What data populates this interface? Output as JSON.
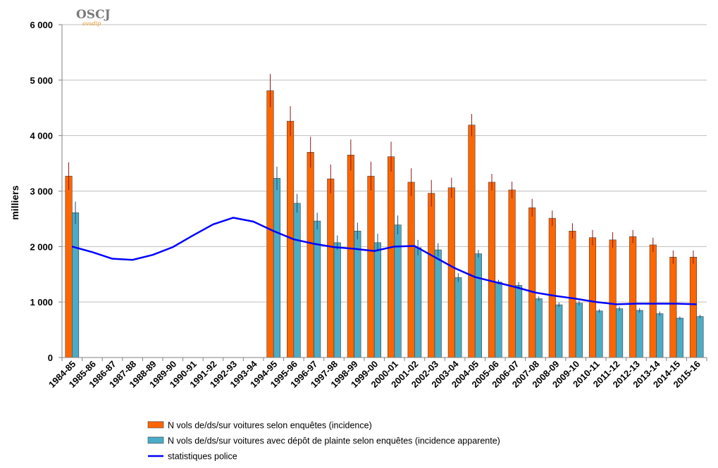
{
  "logo": {
    "text": "OSCJ",
    "sub": "ovsdip"
  },
  "chart_data": {
    "type": "bar",
    "ylabel": "milliers",
    "ylim": [
      0,
      6000
    ],
    "yticks": [
      0,
      1000,
      2000,
      3000,
      4000,
      5000,
      6000
    ],
    "ytick_labels": [
      "0",
      "1 000",
      "2 000",
      "3 000",
      "4 000",
      "5 000",
      "6 000"
    ],
    "grid": true,
    "legend_position": "bottom",
    "categories": [
      "1984-85",
      "1985-86",
      "1986-87",
      "1987-88",
      "1988-89",
      "1989-90",
      "1990-91",
      "1991-92",
      "1992-93",
      "1993-94",
      "1994-95",
      "1995-96",
      "1996-97",
      "1997-98",
      "1998-99",
      "1999-00",
      "2000-01",
      "2001-02",
      "2002-03",
      "2003-04",
      "2004-05",
      "2005-06",
      "2006-07",
      "2007-08",
      "2008-09",
      "2009-10",
      "2010-11",
      "2011-12",
      "2012-13",
      "2013-14",
      "2014-15",
      "2015-16"
    ],
    "series": [
      {
        "name": "N vols de/ds/sur voitures selon enquêtes (incidence)",
        "type": "bar",
        "color": "#ff6600",
        "values": [
          3270,
          null,
          null,
          null,
          null,
          null,
          null,
          null,
          null,
          null,
          4810,
          4260,
          3700,
          3220,
          3650,
          3270,
          3620,
          3160,
          2960,
          3060,
          4190,
          3160,
          3020,
          2700,
          2510,
          2280,
          2160,
          2120,
          2180,
          2030,
          1810,
          1810
        ],
        "error_upper": [
          3520,
          null,
          null,
          null,
          null,
          null,
          null,
          null,
          null,
          null,
          5110,
          4530,
          3980,
          3480,
          3930,
          3530,
          3890,
          3410,
          3200,
          3240,
          4390,
          3310,
          3170,
          2860,
          2650,
          2420,
          2300,
          2260,
          2300,
          2160,
          1930,
          1930
        ]
      },
      {
        "name": "N vols de/ds/sur voitures avec dépôt de plainte selon enquêtes (incidence apparente)",
        "type": "bar",
        "color": "#4bacc6",
        "values": [
          2610,
          null,
          null,
          null,
          null,
          null,
          null,
          null,
          null,
          null,
          3230,
          2780,
          2460,
          2070,
          2280,
          2070,
          2390,
          1980,
          1940,
          1440,
          1870,
          1360,
          1300,
          1060,
          950,
          980,
          840,
          880,
          850,
          790,
          710,
          740
        ],
        "error_upper": [
          2810,
          null,
          null,
          null,
          null,
          null,
          null,
          null,
          null,
          null,
          3440,
          2950,
          2610,
          2200,
          2430,
          2230,
          2560,
          2120,
          2060,
          1520,
          1940,
          1400,
          1360,
          1100,
          990,
          1020,
          870,
          920,
          890,
          830,
          740,
          770
        ]
      },
      {
        "name": "statistiques police",
        "type": "line",
        "color": "#0000ff",
        "values": [
          2000,
          1900,
          1780,
          1760,
          1850,
          1990,
          2200,
          2400,
          2520,
          2450,
          2280,
          2130,
          2050,
          1990,
          1960,
          1920,
          2000,
          2010,
          1810,
          1610,
          1450,
          1360,
          1270,
          1170,
          1110,
          1060,
          1000,
          960,
          970,
          970,
          970,
          960
        ]
      }
    ]
  }
}
